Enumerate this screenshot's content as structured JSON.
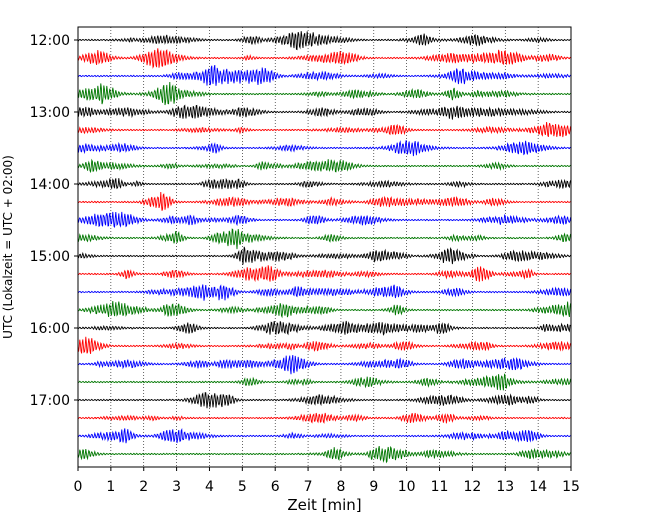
{
  "chart_data": {
    "type": "line",
    "title": "",
    "xlabel": "Zeit  [min]",
    "ylabel": "UTC (Lokalzeit = UTC + 02:00)",
    "xlim": [
      0,
      15
    ],
    "x_ticks": [
      0,
      1,
      2,
      3,
      4,
      5,
      6,
      7,
      8,
      9,
      10,
      11,
      12,
      13,
      14,
      15
    ],
    "y_tick_labels": [
      "12:00",
      "13:00",
      "14:00",
      "15:00",
      "16:00",
      "17:00"
    ],
    "grid": "vertical dotted",
    "trace_interval_minutes": 15,
    "trace_start": "12:00",
    "trace_count": 24,
    "series_colors": [
      "#000000",
      "#ff0000",
      "#0000ff",
      "#007700"
    ],
    "series": [
      {
        "start": "12:00",
        "color": "#000000"
      },
      {
        "start": "12:15",
        "color": "#ff0000"
      },
      {
        "start": "12:30",
        "color": "#0000ff"
      },
      {
        "start": "12:45",
        "color": "#007700"
      },
      {
        "start": "13:00",
        "color": "#000000"
      },
      {
        "start": "13:15",
        "color": "#ff0000"
      },
      {
        "start": "13:30",
        "color": "#0000ff"
      },
      {
        "start": "13:45",
        "color": "#007700"
      },
      {
        "start": "14:00",
        "color": "#000000"
      },
      {
        "start": "14:15",
        "color": "#ff0000"
      },
      {
        "start": "14:30",
        "color": "#0000ff"
      },
      {
        "start": "14:45",
        "color": "#007700"
      },
      {
        "start": "15:00",
        "color": "#000000"
      },
      {
        "start": "15:15",
        "color": "#ff0000"
      },
      {
        "start": "15:30",
        "color": "#0000ff"
      },
      {
        "start": "15:45",
        "color": "#007700"
      },
      {
        "start": "16:00",
        "color": "#000000"
      },
      {
        "start": "16:15",
        "color": "#ff0000"
      },
      {
        "start": "16:30",
        "color": "#0000ff"
      },
      {
        "start": "16:45",
        "color": "#007700"
      },
      {
        "start": "17:00",
        "color": "#000000"
      },
      {
        "start": "17:15",
        "color": "#ff0000"
      },
      {
        "start": "17:30",
        "color": "#0000ff"
      },
      {
        "start": "17:45",
        "color": "#007700"
      }
    ]
  }
}
